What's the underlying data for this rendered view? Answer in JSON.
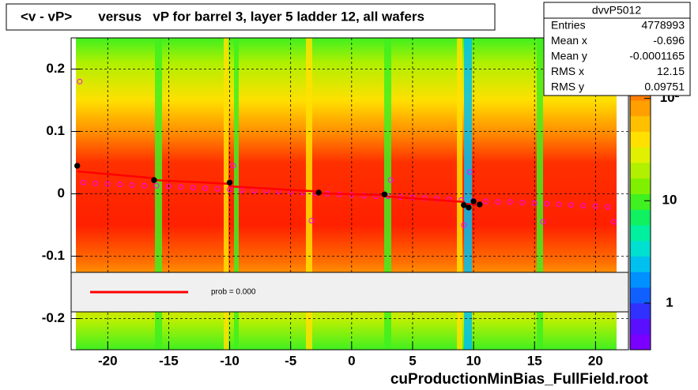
{
  "chart_data": {
    "type": "scatter",
    "title": "<v - vP>       versus   vP for barrel 3, layer 5 ladder 12, all wafers",
    "footer": "cuProductionMinBias_FullField.root",
    "xlim": [
      -23,
      22.7
    ],
    "ylim": [
      -0.25,
      0.25
    ],
    "xticks": [
      -20,
      -15,
      -10,
      -5,
      0,
      5,
      10,
      15,
      20
    ],
    "yticks": [
      -0.2,
      -0.1,
      0,
      0.1,
      0.2
    ],
    "grid": true,
    "series": [
      {
        "mode": "open-markers",
        "color": "#ff00ff",
        "x": [
          -22,
          -21,
          -20,
          -19,
          -18,
          -17,
          -16,
          -15,
          -14,
          -13,
          -12,
          -11,
          -10,
          -9,
          -8,
          -7,
          -6,
          -5,
          -4,
          -3,
          -2,
          -1,
          0,
          1,
          2,
          3,
          4,
          5,
          6,
          7,
          8,
          9,
          10,
          11,
          12,
          13,
          14,
          15,
          16,
          17,
          18,
          19,
          20,
          21,
          -22.3,
          -9.7,
          -3.3,
          3.2,
          9.2,
          9.7,
          15.7,
          21.5
        ],
        "values": [
          0.018,
          0.017,
          0.016,
          0.015,
          0.014,
          0.013,
          0.013,
          0.012,
          0.011,
          0.01,
          0.009,
          0.008,
          0.007,
          0.006,
          0.005,
          0.005,
          0.004,
          0.003,
          0.002,
          0.001,
          0,
          -0.001,
          -0.002,
          -0.003,
          -0.004,
          -0.004,
          -0.005,
          -0.006,
          -0.007,
          -0.008,
          -0.009,
          -0.01,
          -0.011,
          -0.012,
          -0.013,
          -0.013,
          -0.014,
          -0.015,
          -0.016,
          -0.017,
          -0.018,
          -0.019,
          -0.02,
          -0.021,
          0.18,
          0.045,
          -0.043,
          0.022,
          -0.05,
          0.035,
          -0.045,
          -0.045
        ]
      },
      {
        "mode": "line",
        "color": "#ff0000",
        "x": [
          -22.5,
          -16.2,
          -16.2,
          -10,
          -10,
          -3,
          -3,
          2.7,
          2.7,
          9.2,
          9.2,
          10.7
        ],
        "values": [
          0.036,
          0.025,
          0.022,
          0.016,
          0.012,
          0.004,
          0.001,
          -0.002,
          -0.004,
          -0.013,
          -0.016,
          -0.018
        ]
      },
      {
        "mode": "markers",
        "color": "#000000",
        "x": [
          -22.5,
          -16.2,
          -10,
          -2.7,
          2.7,
          9.2,
          9.6,
          10.0,
          10.5
        ],
        "values": [
          0.045,
          0.022,
          0.018,
          0.002,
          -0.001,
          -0.018,
          -0.022,
          -0.012,
          -0.017
        ]
      }
    ],
    "colorbar": {
      "log": true,
      "zlim": [
        0.35,
        390
      ],
      "zticks": [
        1,
        10,
        {
          "value": 100,
          "label": "10²"
        }
      ],
      "palette": [
        "#7a00ff",
        "#5a10ff",
        "#3030ff",
        "#1060ff",
        "#0090ff",
        "#00c0f0",
        "#00e0d0",
        "#00f0a0",
        "#10f060",
        "#40f020",
        "#80f000",
        "#b0f000",
        "#e0f000",
        "#ffe000",
        "#ffc000",
        "#ffa000",
        "#ff8000",
        "#ff6000",
        "#ff4000",
        "#ff2000"
      ]
    },
    "legend": {
      "text": "prob = 0.000",
      "color": "#ff0000"
    },
    "stats": {
      "title": "dvvP5012",
      "rows": [
        [
          "Entries",
          "4778993"
        ],
        [
          "Mean x",
          "-0.696"
        ],
        [
          "Mean y",
          "-0.0001165"
        ],
        [
          "RMS x",
          "12.15"
        ],
        [
          "RMS y",
          "0.09751"
        ]
      ]
    }
  }
}
